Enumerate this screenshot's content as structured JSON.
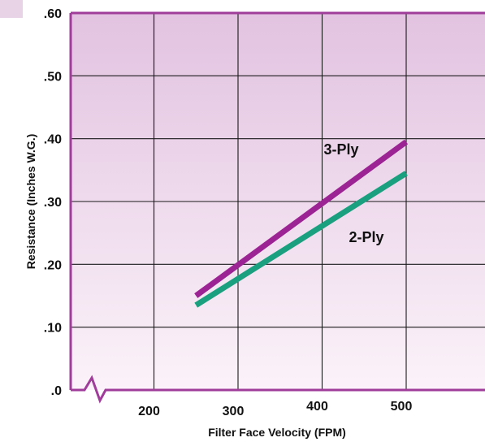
{
  "chart_data": {
    "type": "line",
    "xlabel": "Filter Face Velocity (FPM)",
    "ylabel": "Resistance (Inches W.G.)",
    "x_ticks": [
      200,
      300,
      400,
      500
    ],
    "y_ticks": [
      ".0",
      ".10",
      ".20",
      ".30",
      ".40",
      ".50",
      ".60"
    ],
    "xlim": [
      100,
      600
    ],
    "ylim": [
      0,
      0.6
    ],
    "axis_break": "x",
    "grid": true,
    "series": [
      {
        "name": "3-Ply",
        "color": "#9b2393",
        "x": [
          250,
          500
        ],
        "y": [
          0.15,
          0.395
        ]
      },
      {
        "name": "2-Ply",
        "color": "#1aa07f",
        "x": [
          250,
          500
        ],
        "y": [
          0.135,
          0.345
        ]
      }
    ]
  },
  "colors": {
    "frame": "#a03c9a",
    "plot_top": "#e2c2e0",
    "plot_bottom": "#fbf3f9",
    "grid": "#1a1a1a"
  }
}
